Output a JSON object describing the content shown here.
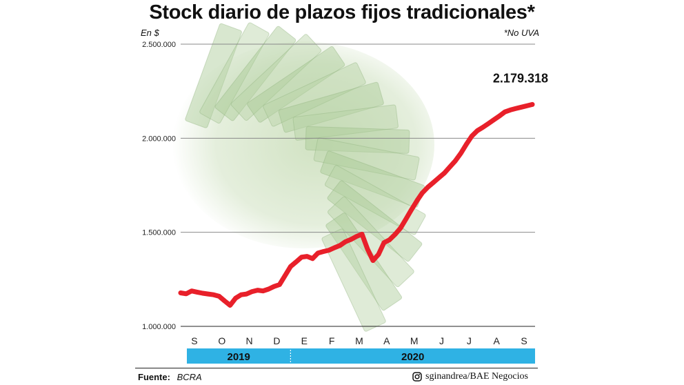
{
  "header": {
    "title": "Stock diario de plazos fijos tradicionales*",
    "unit": "En $",
    "note": "*No UVA"
  },
  "footer": {
    "source_label": "Fuente:",
    "source_value": "BCRA",
    "credit": "sginandrea/BAE Negocios",
    "credit_icon": "instagram-icon"
  },
  "colors": {
    "line": "#e8202a",
    "year_band": "#2fb2e4",
    "grid": "#888888",
    "illustration": "#cfe1c0"
  },
  "chart_data": {
    "type": "line",
    "title": "Stock diario de plazos fijos tradicionales*",
    "ylabel": "En $",
    "ylim": [
      1000000,
      2500000
    ],
    "yticks": [
      1000000,
      1500000,
      2000000,
      2500000
    ],
    "ytick_labels": [
      "1.000.000",
      "1.500.000",
      "2.000.000",
      "2.500.000"
    ],
    "xlim": [
      0,
      12.9
    ],
    "xticks": [
      0.5,
      1.5,
      2.5,
      3.5,
      4.5,
      5.5,
      6.5,
      7.5,
      8.5,
      9.5,
      10.5,
      11.5,
      12.5
    ],
    "xtick_labels": [
      "S",
      "O",
      "N",
      "D",
      "E",
      "F",
      "M",
      "A",
      "M",
      "J",
      "J",
      "A",
      "S"
    ],
    "grid": true,
    "years": [
      {
        "label": "2019",
        "from": 0,
        "to": 4
      },
      {
        "label": "2020",
        "from": 4,
        "to": 12.9
      }
    ],
    "series": [
      {
        "x": [
          0.0,
          0.2,
          0.4,
          0.6,
          0.8,
          1.0,
          1.2,
          1.4,
          1.6,
          1.8,
          2.0,
          2.2,
          2.4,
          2.6,
          2.8,
          3.0,
          3.2,
          3.4,
          3.6,
          3.8,
          4.0,
          4.2,
          4.4,
          4.6,
          4.8,
          5.0,
          5.2,
          5.4,
          5.6,
          5.8,
          6.0,
          6.2,
          6.4,
          6.6,
          6.8,
          7.0,
          7.2,
          7.4,
          7.6,
          7.8,
          8.0,
          8.2,
          8.4,
          8.6,
          8.8,
          9.0,
          9.2,
          9.4,
          9.6,
          9.8,
          10.0,
          10.2,
          10.4,
          10.6,
          10.8,
          11.0,
          11.2,
          11.4,
          11.6,
          11.8,
          12.0,
          12.2,
          12.4,
          12.6,
          12.8
        ],
        "values": [
          1178000,
          1173000,
          1188000,
          1182000,
          1176000,
          1172000,
          1168000,
          1160000,
          1135000,
          1112000,
          1150000,
          1168000,
          1172000,
          1185000,
          1192000,
          1188000,
          1198000,
          1212000,
          1222000,
          1270000,
          1318000,
          1342000,
          1368000,
          1372000,
          1360000,
          1390000,
          1398000,
          1405000,
          1418000,
          1430000,
          1450000,
          1462000,
          1478000,
          1490000,
          1412000,
          1350000,
          1382000,
          1445000,
          1460000,
          1488000,
          1522000,
          1570000,
          1620000,
          1668000,
          1710000,
          1740000,
          1765000,
          1790000,
          1815000,
          1848000,
          1880000,
          1920000,
          1968000,
          2012000,
          2040000,
          2058000,
          2078000,
          2098000,
          2118000,
          2140000,
          2150000,
          2158000,
          2165000,
          2172000,
          2179318
        ]
      }
    ],
    "annotations": [
      {
        "text": "2.179.318",
        "x": 12.8,
        "y": 2179318
      }
    ]
  }
}
